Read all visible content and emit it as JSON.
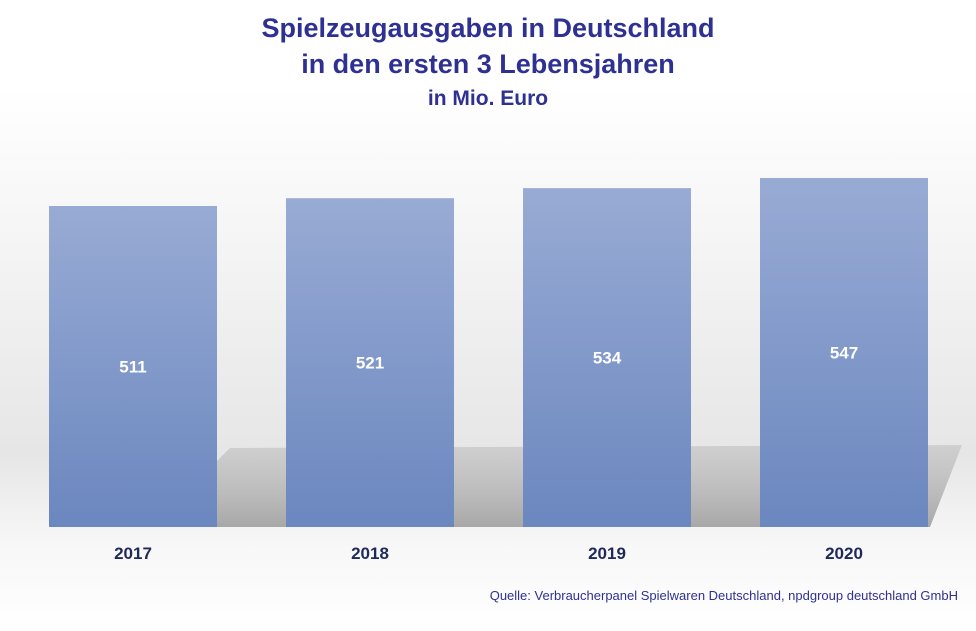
{
  "chart_data": {
    "type": "bar",
    "title": "Spielzeugausgaben in Deutschland",
    "title_line2": "in den ersten 3 Lebensjahren",
    "subtitle": "in Mio. Euro",
    "categories": [
      "2017",
      "2018",
      "2019",
      "2020"
    ],
    "values": [
      511,
      521,
      534,
      547
    ],
    "xlabel": "",
    "ylabel": "",
    "grid": false,
    "legend": "none",
    "bar_color_top": "#98abd4",
    "bar_color_bottom": "#6b87bf",
    "label_color": "#ffffff",
    "tick_color": "#1f2a5a"
  },
  "source": "Quelle: Verbraucherpanel Spielwaren Deutschland, npdgroup deutschland GmbH"
}
